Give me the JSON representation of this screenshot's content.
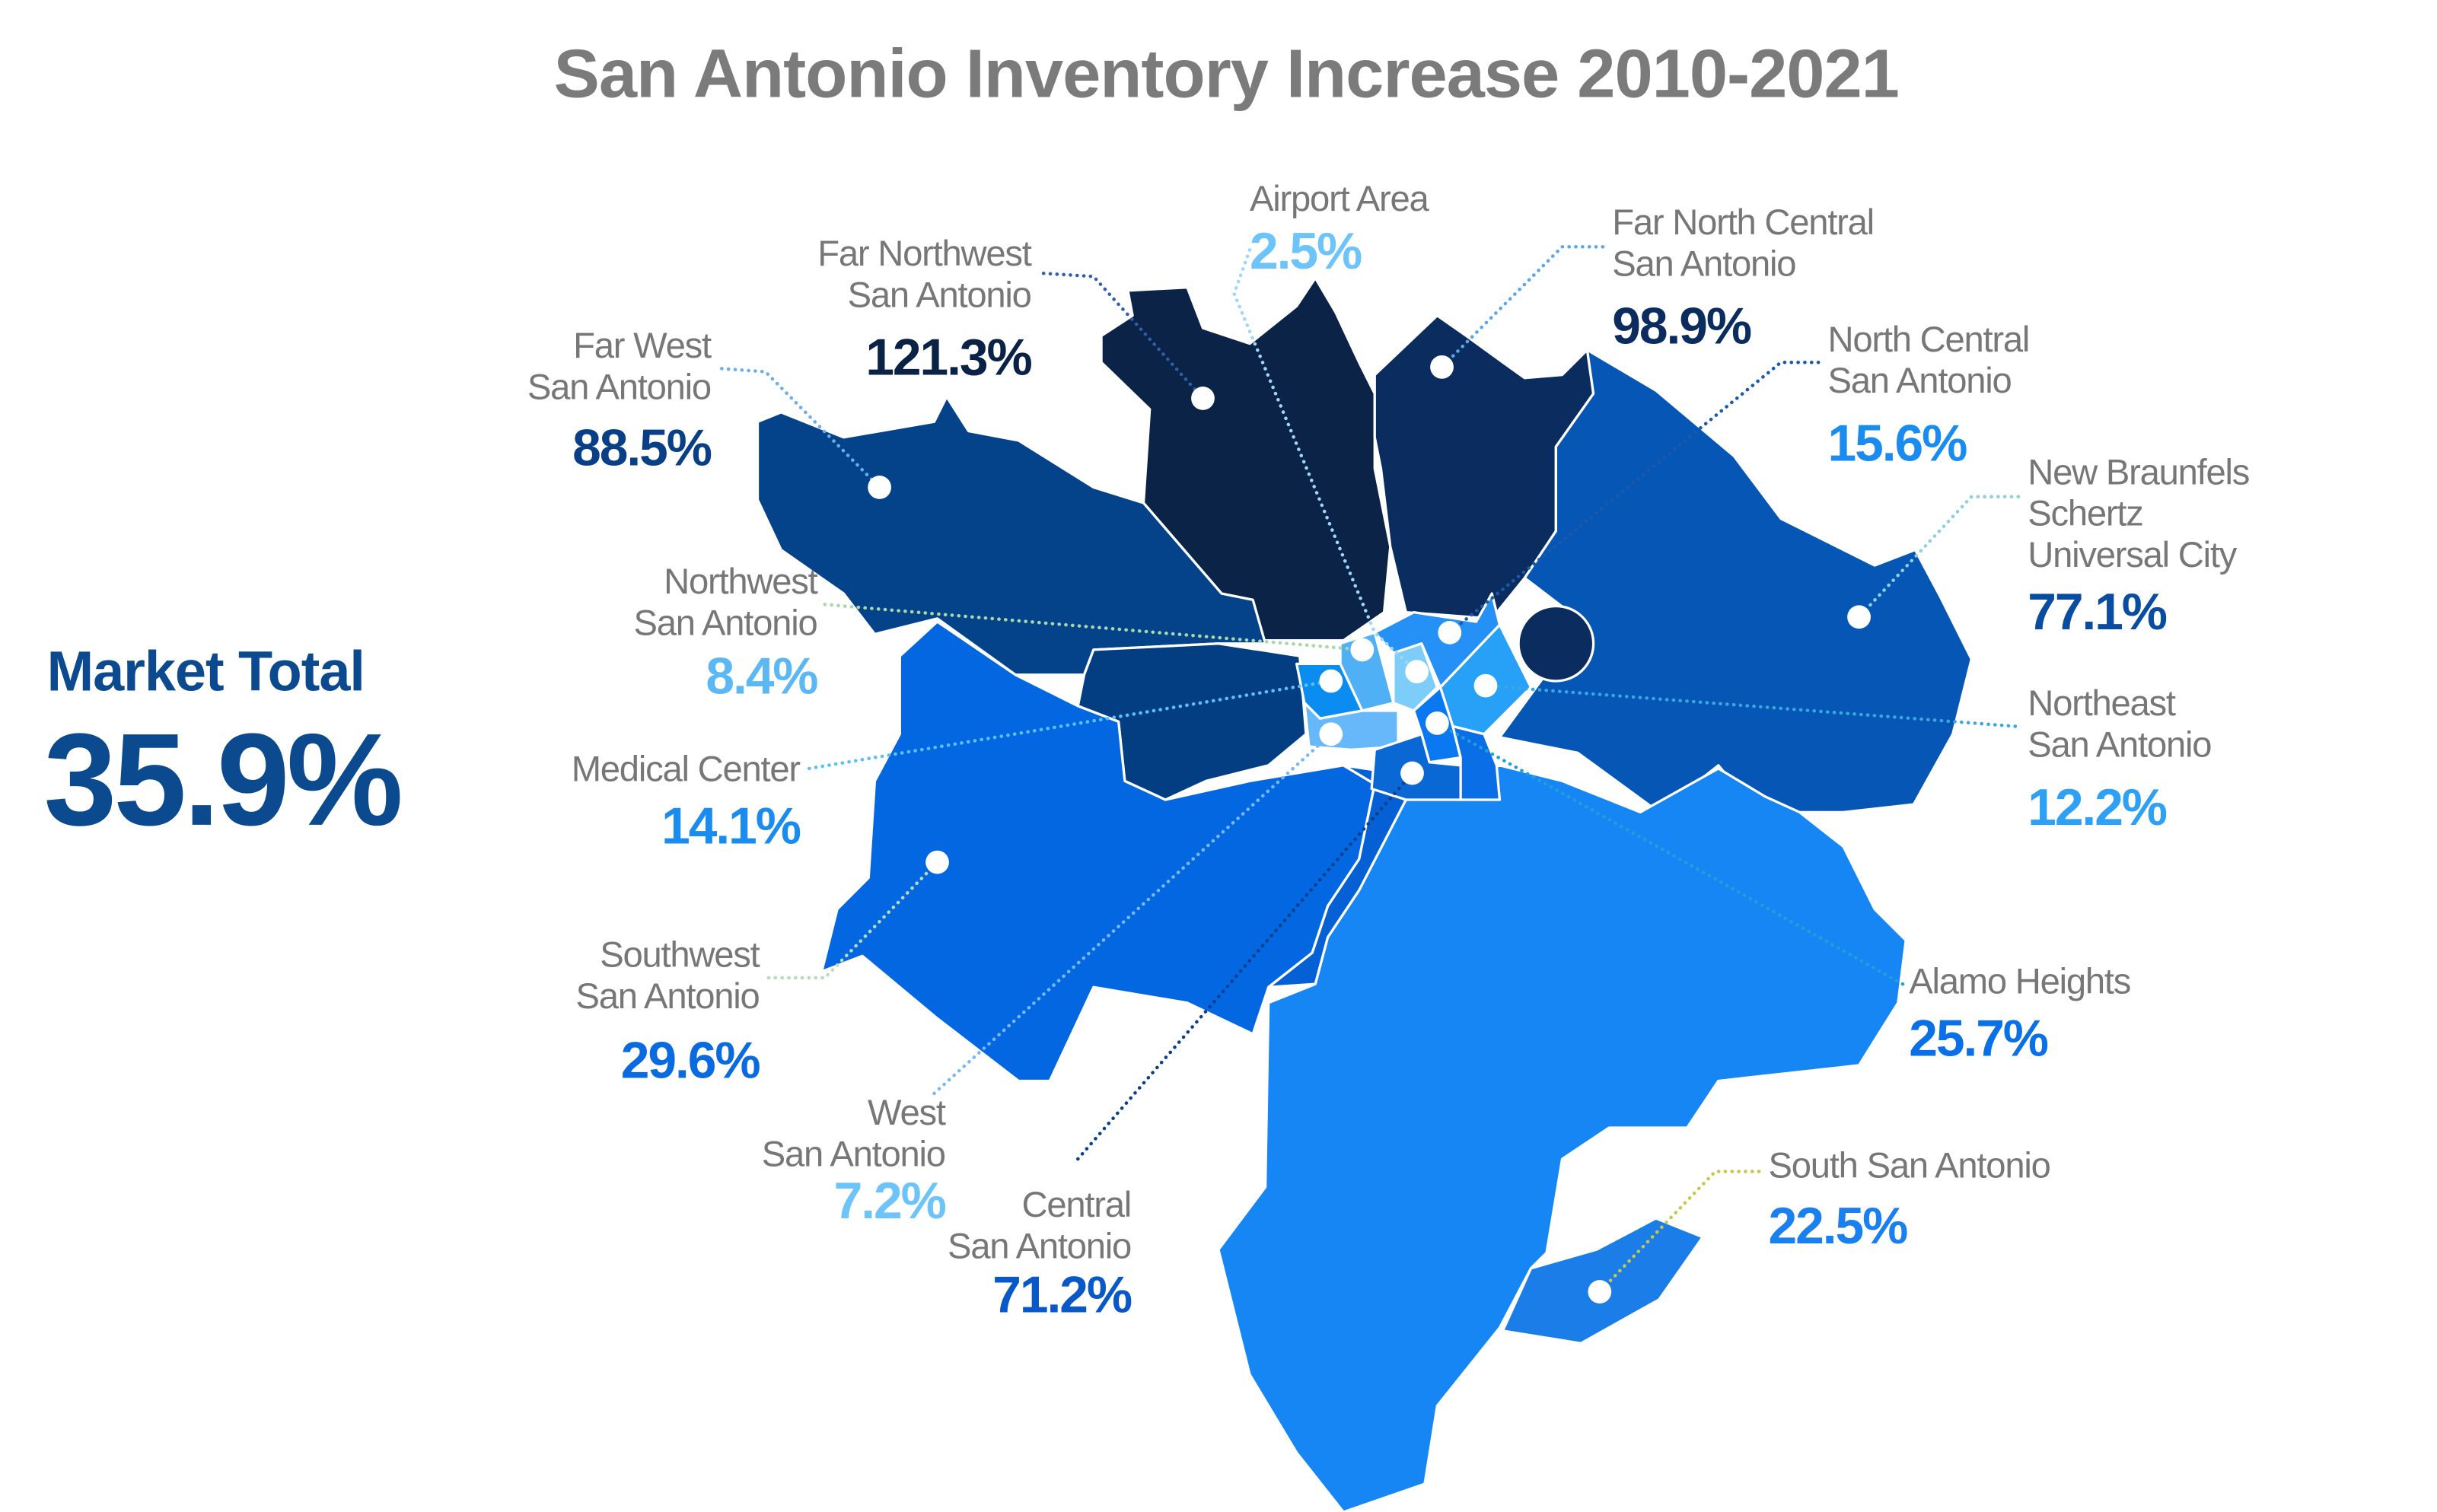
{
  "title": "San Antonio Inventory Increase 2010-2021",
  "market_total": {
    "label": "Market Total",
    "value": "35.9%",
    "color": "#0b4a8f"
  },
  "label_color": "#777777",
  "submarkets": [
    {
      "name": [
        "Airport Area"
      ],
      "value": "2.5%",
      "color": "#6cc4fa",
      "line_color": "#9fd6fb"
    },
    {
      "name": [
        "Far Northwest",
        "San Antonio"
      ],
      "value": "121.3%",
      "color": "#0b2247",
      "line_color": "#2f5fa8"
    },
    {
      "name": [
        "Far West",
        "San Antonio"
      ],
      "value": "88.5%",
      "color": "#083f86",
      "line_color": "#6aaee8"
    },
    {
      "name": [
        "Far North Central",
        "San Antonio"
      ],
      "value": "98.9%",
      "color": "#0b2c5e",
      "line_color": "#5aa6e8"
    },
    {
      "name": [
        "North Central",
        "San Antonio"
      ],
      "value": "15.6%",
      "color": "#1a8cf0",
      "line_color": "#1a5aa8"
    },
    {
      "name": [
        "New Braunfels",
        "Schertz",
        "Universal City"
      ],
      "value": "77.1%",
      "color": "#0a4da0",
      "line_color": "#8fd0e0"
    },
    {
      "name": [
        "Northwest",
        "San Antonio"
      ],
      "value": "8.4%",
      "color": "#5bb8f5",
      "line_color": "#a8d8a8"
    },
    {
      "name": [
        "Medical Center"
      ],
      "value": "14.1%",
      "color": "#1a8cf0",
      "line_color": "#5cc0f0"
    },
    {
      "name": [
        "Northeast",
        "San Antonio"
      ],
      "value": "12.2%",
      "color": "#2ea0f5",
      "line_color": "#3aa8e0"
    },
    {
      "name": [
        "Southwest",
        "San Antonio"
      ],
      "value": "29.6%",
      "color": "#0a6be0",
      "line_color": "#b8dcb8"
    },
    {
      "name": [
        "Alamo Heights"
      ],
      "value": "25.7%",
      "color": "#0a70e8",
      "line_color": "#20a0d8"
    },
    {
      "name": [
        "West",
        "San Antonio"
      ],
      "value": "7.2%",
      "color": "#6cc4fa",
      "line_color": "#7ab8f0"
    },
    {
      "name": [
        "Central",
        "San Antonio"
      ],
      "value": "71.2%",
      "color": "#0858c8",
      "line_color": "#0a3f8a"
    },
    {
      "name": [
        "South San Antonio"
      ],
      "value": "22.5%",
      "color": "#1a80f0",
      "line_color": "#c8c848"
    }
  ],
  "map_colors": {
    "far_northwest": "#0a2347",
    "far_north_central": "#0b2c5e",
    "new_braunfels": "#0556b5",
    "far_west": "#04438a",
    "northwest": "#033e82",
    "southwest": "#0367e2",
    "central_band": "#0460d4",
    "south": "#1786f5",
    "south_san_antonio": "#1a7de8",
    "core": [
      "#0a8cf0",
      "#4fb0f5",
      "#7dcdfb",
      "#2590f5",
      "#27a0f8",
      "#66b8fb",
      "#0a78f0",
      "#0a68d4",
      "#0a6ee6"
    ]
  }
}
